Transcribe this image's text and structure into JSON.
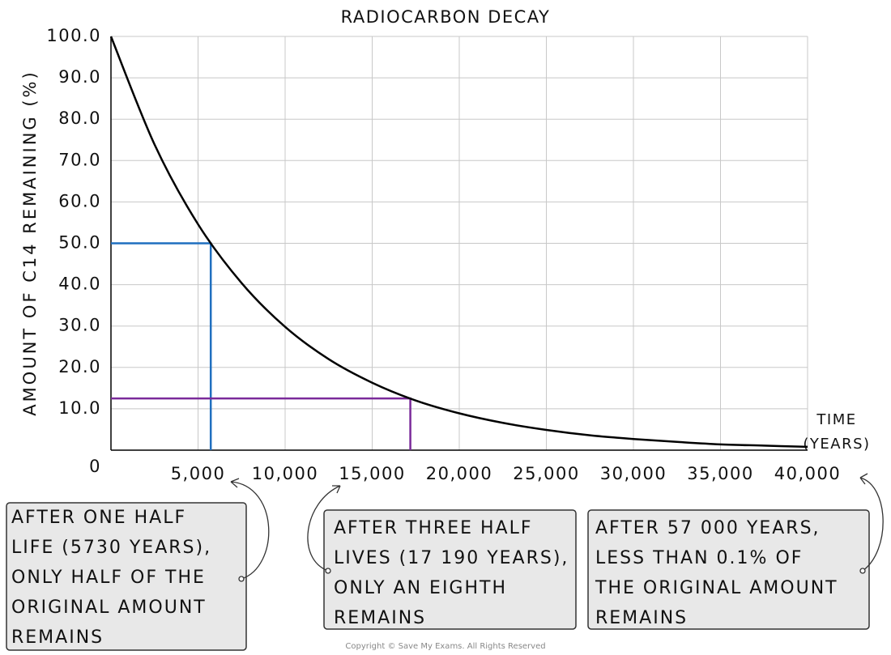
{
  "chart_data": {
    "type": "line",
    "title": "RADIOCARBON DECAY",
    "xlabel": [
      "TIME",
      "(YEARS)"
    ],
    "ylabel": "AMOUNT OF C14 REMAINING (%)",
    "x": [
      0,
      2500,
      5000,
      7500,
      10000,
      12500,
      15000,
      17500,
      20000,
      22500,
      25000,
      27500,
      30000,
      32500,
      35000,
      37500,
      40000
    ],
    "series": [
      {
        "color": "#000000",
        "values": [
          100,
          73.9,
          54.6,
          40.4,
          29.8,
          22.0,
          16.3,
          12.0,
          8.9,
          6.6,
          4.9,
          3.6,
          2.7,
          2.0,
          1.4,
          1.1,
          0.8
        ]
      }
    ],
    "xlim": [
      0,
      40000
    ],
    "ylim": [
      0,
      100
    ],
    "xticks": [
      {
        "value": 5000,
        "label": "5,000"
      },
      {
        "value": 10000,
        "label": "10,000"
      },
      {
        "value": 15000,
        "label": "15,000"
      },
      {
        "value": 20000,
        "label": "20,000"
      },
      {
        "value": 25000,
        "label": "25,000"
      },
      {
        "value": 30000,
        "label": "30,000"
      },
      {
        "value": 35000,
        "label": "35,000"
      },
      {
        "value": 40000,
        "label": "40,000"
      }
    ],
    "yticks": [
      0,
      {
        "value": 10,
        "label": "10.0"
      },
      {
        "value": 20,
        "label": "20.0"
      },
      {
        "value": 30,
        "label": "30.0"
      },
      {
        "value": 40,
        "label": "40.0"
      },
      {
        "value": 50,
        "label": "50.0"
      },
      {
        "value": 60,
        "label": "60.0"
      },
      {
        "value": 70,
        "label": "70.0"
      },
      {
        "value": 80,
        "label": "80.0"
      },
      {
        "value": 90,
        "label": "90.0"
      },
      {
        "value": 100,
        "label": "100.0"
      }
    ],
    "grid": true,
    "markers": [
      {
        "x": 5730,
        "y": 50,
        "color": "#1f6fbf"
      },
      {
        "x": 17190,
        "y": 12.5,
        "color": "#7a2a9a"
      }
    ],
    "annotations": [
      {
        "color": "#1f6fbf",
        "lines": [
          "AFTER ONE HALF",
          "LIFE (5730 YEARS),",
          "ONLY HALF OF THE",
          "ORIGINAL AMOUNT",
          "REMAINS"
        ]
      },
      {
        "color": "#7a2a9a",
        "lines": [
          "AFTER THREE HALF",
          "LIVES (17 190 YEARS),",
          "ONLY AN EIGHTH",
          "REMAINS"
        ]
      },
      {
        "color": "#1a9a3a",
        "lines": [
          "AFTER 57 000 YEARS,",
          "LESS THAN 0.1% OF",
          "THE ORIGINAL AMOUNT",
          "REMAINS"
        ]
      }
    ],
    "copyright": "Copyright © Save My Exams. All Rights Reserved"
  }
}
